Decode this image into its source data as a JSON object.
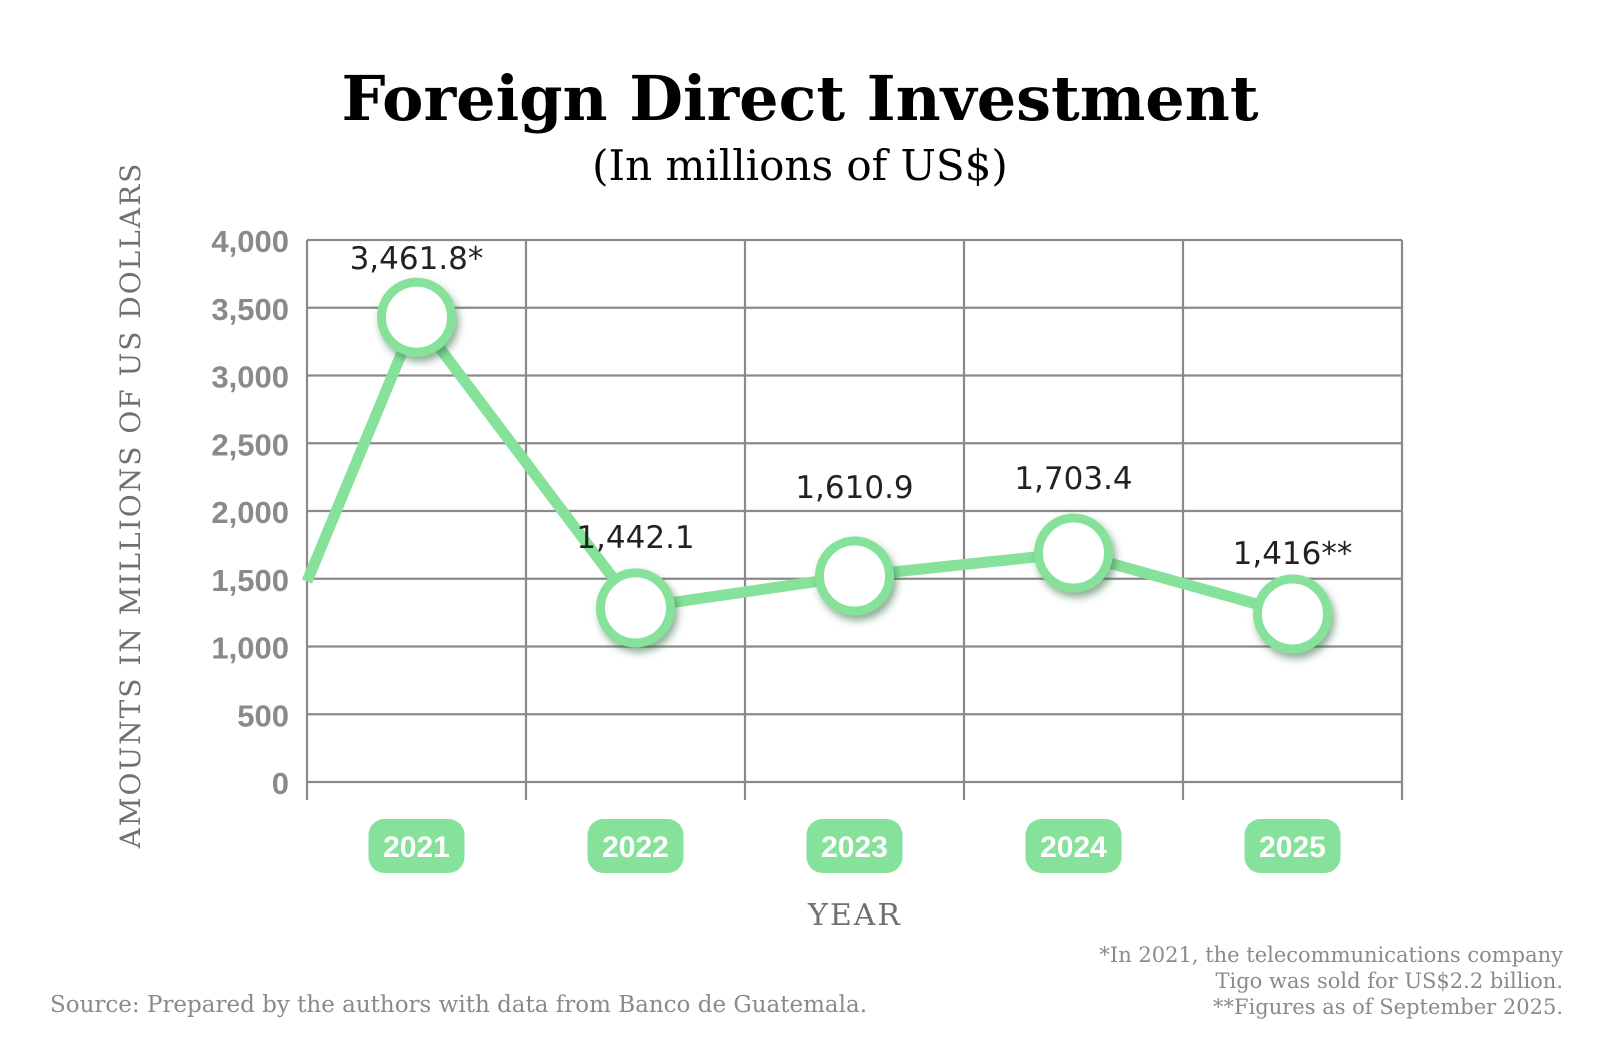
{
  "header": {
    "title": "Foreign Direct Investment",
    "subtitle": "(In millions of US$)"
  },
  "footer": {
    "source": "Source: Prepared by the authors with data from Banco de Guatemala.",
    "notes": [
      "*In 2021, the telecommunications company",
      "Tigo was sold for US$2.2 billion.",
      "**Figures as of September 2025."
    ]
  },
  "colors": {
    "line": "#86e29b",
    "marker_ring": "#86e29b",
    "marker_shadow": "#3d7a4d",
    "category_pill": "#86e29b",
    "grid": "#8a8a8a"
  },
  "chart_data": {
    "type": "line",
    "title": "Foreign Direct Investment",
    "subtitle": "(In millions of US$)",
    "xlabel": "YEAR",
    "ylabel": "AMOUNTS IN MILLIONS OF US DOLLARS",
    "categories": [
      "2021",
      "2022",
      "2023",
      "2024",
      "2025"
    ],
    "series": [
      {
        "values": [
          3461.8,
          1442.1,
          1610.9,
          1703.4,
          1416
        ],
        "plotted_values": [
          3430,
          1285,
          1520,
          1690,
          1240
        ],
        "data_labels": [
          "3,461.8*",
          "1,442.1",
          "1,610.9",
          "1,703.4",
          "1,416**"
        ],
        "line_start_value": 1480
      }
    ],
    "ylim": [
      0,
      4000
    ],
    "yticks": [
      0,
      500,
      1000,
      1500,
      2000,
      2500,
      3000,
      3500,
      4000
    ],
    "ytick_labels": [
      "0",
      "500",
      "1,000",
      "1,500",
      "2,000",
      "2,500",
      "3,000",
      "3,500",
      "4,000"
    ],
    "grid": true,
    "legend": "none"
  }
}
